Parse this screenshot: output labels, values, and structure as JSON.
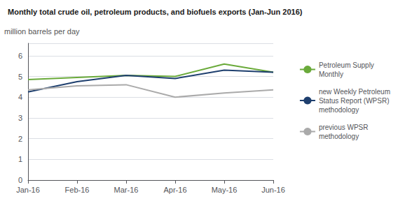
{
  "chart_data": {
    "type": "line",
    "title": "Monthly total crude oil, petroleum products, and biofuels exports (Jan-Jun 2016)",
    "y_label": "million barrels per day",
    "categories": [
      "Jan-16",
      "Feb-16",
      "Mar-16",
      "Apr-16",
      "May-16",
      "Jun-16"
    ],
    "series": [
      {
        "name": "Petroleum Supply\nMonthly",
        "color": "#6aaa3a",
        "values": [
          4.85,
          4.95,
          5.05,
          5.0,
          5.6,
          5.2
        ]
      },
      {
        "name": "new Weekly Petroleum\nStatus Report (WPSR)\nmethodology",
        "color": "#1e3f6e",
        "values": [
          4.25,
          4.75,
          5.05,
          4.9,
          5.3,
          5.2
        ]
      },
      {
        "name": "previous WPSR\nmethodology",
        "color": "#aaaaaa",
        "values": [
          4.35,
          4.55,
          4.6,
          4.0,
          4.2,
          4.35
        ]
      }
    ],
    "ylim": [
      0,
      6.6
    ],
    "yticks": [
      0,
      1,
      2,
      3,
      4,
      5,
      6
    ],
    "grid": true,
    "legend": "right"
  }
}
